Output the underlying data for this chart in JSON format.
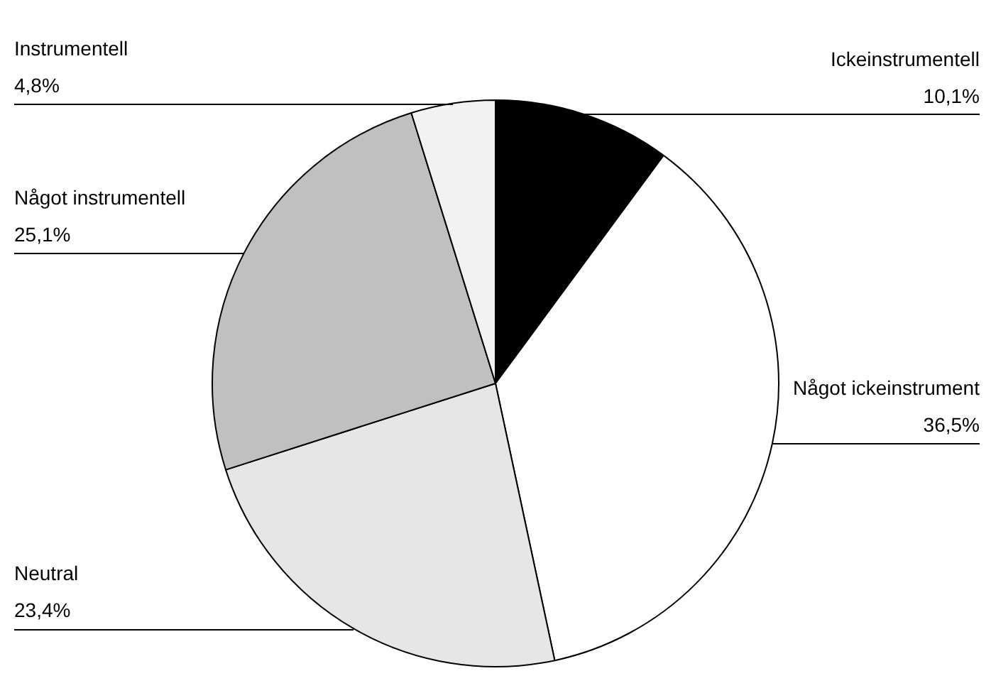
{
  "chart_data": {
    "type": "pie",
    "categories": [
      "Ickeinstrumentell",
      "Något ickeinstrument",
      "Neutral",
      "Något instrumentell",
      "Instrumentell"
    ],
    "values": [
      10.1,
      36.5,
      23.4,
      25.1,
      4.8
    ],
    "value_labels": [
      "10,1%",
      "36,5%",
      "23,4%",
      "25,1%",
      "4,8%"
    ],
    "colors": [
      "#000000",
      "#ffffff",
      "#e6e6e6",
      "#c0c0c0",
      "#f2f2f2"
    ],
    "legend": false
  }
}
